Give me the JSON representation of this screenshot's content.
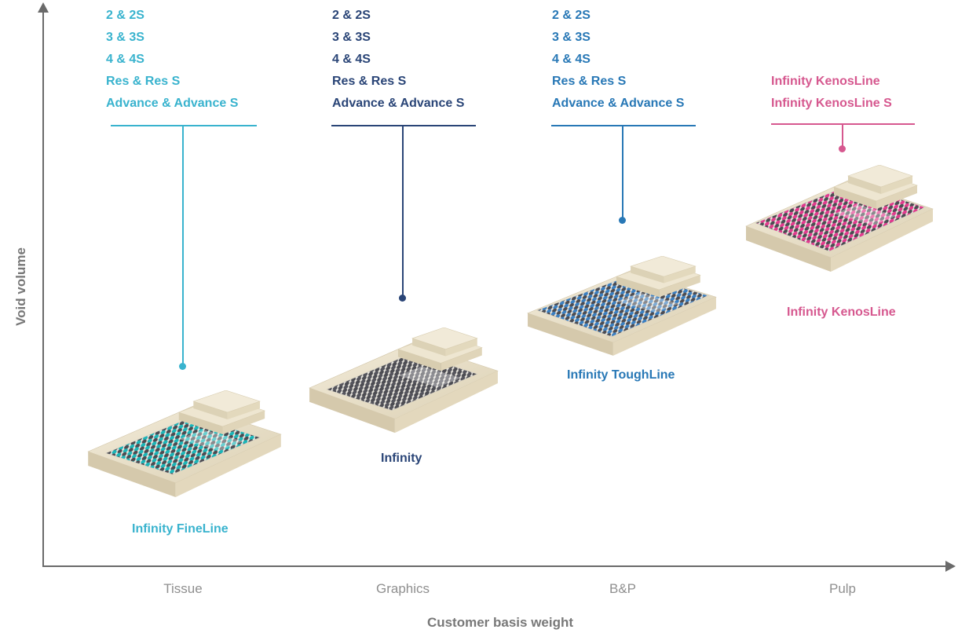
{
  "figure": {
    "y_axis_label": "Void volume",
    "x_axis_label": "Customer basis weight"
  },
  "x_ticks": [
    "Tissue",
    "Graphics",
    "B&P",
    "Pulp"
  ],
  "products": [
    {
      "name": "Infinity FineLine",
      "segment": "Tissue",
      "accent_color": "#39b3ce",
      "mesh_color": "#1bb5b8",
      "variants": [
        "2 & 2S",
        "3 & 3S",
        "4 & 4S",
        "Res & Res S",
        "Advance & Advance S"
      ]
    },
    {
      "name": "Infinity",
      "segment": "Graphics",
      "accent_color": "#2a4577",
      "mesh_color": "#54545c",
      "variants": [
        "2 & 2S",
        "3 & 3S",
        "4 & 4S",
        "Res & Res S",
        "Advance & Advance S"
      ]
    },
    {
      "name": "Infinity ToughLine",
      "segment": "B&P",
      "accent_color": "#2878b6",
      "mesh_color": "#3a7fc1",
      "variants": [
        "2 & 2S",
        "3 & 3S",
        "4 & 4S",
        "Res & Res S",
        "Advance & Advance S"
      ]
    },
    {
      "name": "Infinity KenosLine",
      "segment": "Pulp",
      "accent_color": "#d6588f",
      "mesh_color": "#e23a8e",
      "variants": [
        "Infinity KenosLine",
        "Infinity KenosLine S"
      ]
    }
  ],
  "chart_data": {
    "type": "scatter",
    "title": "",
    "xlabel": "Customer basis weight",
    "ylabel": "Void volume",
    "x_categories": [
      "Tissue",
      "Graphics",
      "B&P",
      "Pulp"
    ],
    "grid": false,
    "legend": false,
    "series": [
      {
        "name": "Infinity FineLine",
        "x": "Tissue",
        "void_volume_rank": 1,
        "variants": [
          "2 & 2S",
          "3 & 3S",
          "4 & 4S",
          "Res & Res S",
          "Advance & Advance S"
        ]
      },
      {
        "name": "Infinity",
        "x": "Graphics",
        "void_volume_rank": 2,
        "variants": [
          "2 & 2S",
          "3 & 3S",
          "4 & 4S",
          "Res & Res S",
          "Advance & Advance S"
        ]
      },
      {
        "name": "Infinity ToughLine",
        "x": "B&P",
        "void_volume_rank": 3,
        "variants": [
          "2 & 2S",
          "3 & 3S",
          "4 & 4S",
          "Res & Res S",
          "Advance & Advance S"
        ]
      },
      {
        "name": "Infinity KenosLine",
        "x": "Pulp",
        "void_volume_rank": 4,
        "variants": [
          "Infinity KenosLine",
          "Infinity KenosLine S"
        ]
      }
    ],
    "note": "Qualitative product-positioning chart: void volume (y) increases from Infinity FineLine to Infinity KenosLine across customer basis weight segments (x)."
  }
}
